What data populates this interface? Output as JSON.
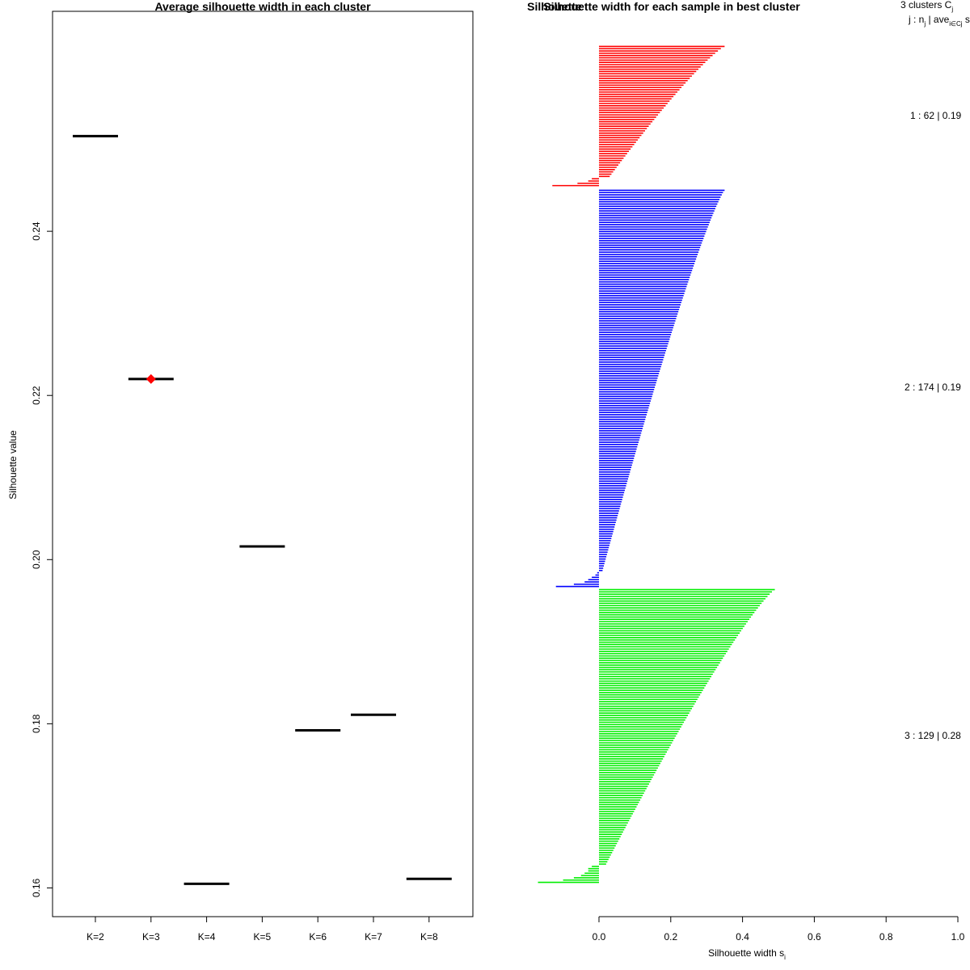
{
  "chart_data": [
    {
      "type": "scatter",
      "marker": "horizontal-segment",
      "title": "Average silhouette width in each cluster",
      "xlabel": "",
      "ylabel": "Silhouette value",
      "categories": [
        "K=2",
        "K=3",
        "K=4",
        "K=5",
        "K=6",
        "K=7",
        "K=8"
      ],
      "values": [
        0.2516,
        0.222,
        0.1605,
        0.2016,
        0.1792,
        0.1811,
        0.1611
      ],
      "best_index": 1,
      "best_color": "#ff0000",
      "ylim": [
        0.1565,
        0.2668
      ],
      "yticks": [
        0.16,
        0.18,
        0.2,
        0.22,
        0.24
      ],
      "ytick_labels": [
        "0.16",
        "0.18",
        "0.20",
        "0.22",
        "0.24"
      ]
    },
    {
      "type": "bar",
      "orientation": "horizontal",
      "title": "Silhouette width for each sample in best cluster",
      "overlap_title": "Silhouette",
      "xlabel": "Silhouette width s",
      "xlabel_subscript": "i",
      "xlim": [
        0,
        1
      ],
      "xticks": [
        "0.0",
        "0.2",
        "0.4",
        "0.6",
        "0.8",
        "1.0"
      ],
      "legend_header": "3  clusters  C",
      "legend_header_sub": "j",
      "legend_sub": "j :  n",
      "legend_sub_n_sub": "j",
      "legend_sub_mid": " | ave",
      "legend_sub_ave_sub": "i∈Cj",
      "legend_sub_tail": " s",
      "clusters": [
        {
          "id": 1,
          "n": 62,
          "avg_label": "0.19",
          "color": "#ff0000",
          "max": 0.35,
          "min": 0.03,
          "neg": [
            -0.13,
            -0.06,
            -0.03,
            -0.02
          ]
        },
        {
          "id": 2,
          "n": 174,
          "avg_label": "0.19",
          "color": "#0000ff",
          "max": 0.35,
          "min": 0.01,
          "neg": [
            -0.12,
            -0.07,
            -0.04,
            -0.03,
            -0.02,
            -0.01,
            -0.005
          ]
        },
        {
          "id": 3,
          "n": 129,
          "avg_label": "0.28",
          "color": "#00ee00",
          "max": 0.49,
          "min": 0.02,
          "neg": [
            -0.17,
            -0.1,
            -0.07,
            -0.05,
            -0.04,
            -0.03,
            -0.03,
            -0.02
          ]
        }
      ],
      "legend_rows": [
        "1 :   62  |  0.19",
        "2 :   174  |  0.19",
        "3 :   129  |  0.28"
      ]
    }
  ]
}
